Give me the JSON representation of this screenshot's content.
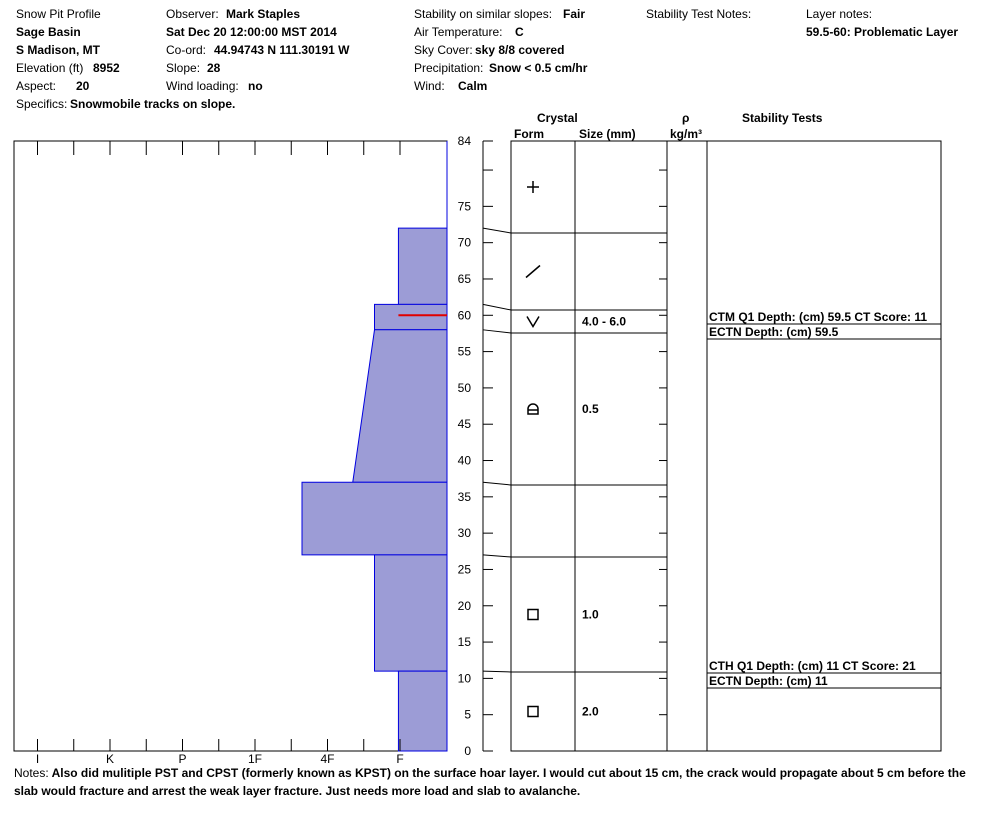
{
  "header": {
    "title": "Snow Pit Profile",
    "location_name": "Sage Basin",
    "region": "S Madison, MT",
    "elevation_label": "Elevation (ft)",
    "elevation_value": "8952",
    "aspect_label": "Aspect:",
    "aspect_value": "20",
    "specifics_label": "Specifics:",
    "specifics_value": "Snowmobile tracks on slope.",
    "observer_label": "Observer:",
    "observer_value": "Mark Staples",
    "datetime": "Sat Dec 20 12:00:00 MST 2014",
    "coord_label": "Co-ord:",
    "coord_value": "44.94743 N 111.30191 W",
    "slope_label": "Slope:",
    "slope_value": "28",
    "wind_loading_label": "Wind loading:",
    "wind_loading_value": "no",
    "stability_label": "Stability on similar slopes:",
    "stability_value": "Fair",
    "air_temp_label": "Air Temperature:",
    "air_temp_value": "C",
    "sky_label": "Sky Cover:",
    "sky_value": "sky 8/8 covered",
    "precip_label": "Precipitation:",
    "precip_value": "Snow < 0.5 cm/hr",
    "wind_label": "Wind:",
    "wind_value": "Calm",
    "stability_test_notes_label": "Stability Test Notes:",
    "layer_notes_label": "Layer notes:",
    "layer_notes_value": "59.5-60: Problematic Layer"
  },
  "columns": {
    "crystal": "Crystal",
    "form": "Form",
    "size": "Size (mm)",
    "rho": "ρ",
    "density_unit": "kg/m³",
    "stability_tests": "Stability Tests"
  },
  "notes": {
    "label": "Notes:",
    "text": "Also did mulitiple PST and CPST (formerly known as KPST) on the surface hoar layer. I would cut about 15 cm, the crack would propagate about 5 cm before the slab would fracture and arrest the weak layer fracture. Just needs more load and slab to avalanche."
  },
  "chart_data": {
    "type": "area",
    "title": "",
    "xlabel": "",
    "ylabel": "",
    "ylim": [
      0,
      84
    ],
    "y_ticks": [
      0,
      5,
      10,
      15,
      20,
      25,
      30,
      35,
      40,
      45,
      50,
      55,
      60,
      65,
      70,
      75,
      84
    ],
    "hardness_scale": [
      "F",
      "4F",
      "1F",
      "P",
      "K",
      "I"
    ],
    "hardness_labels": [
      "I",
      "K",
      "P",
      "1F",
      "4F",
      "F"
    ],
    "layers": [
      {
        "top": 84,
        "bottom": 72,
        "hardness_top": 0,
        "hardness_bottom": 0,
        "form": "new-snow",
        "size": ""
      },
      {
        "top": 72,
        "bottom": 61.5,
        "hardness_top": 0.67,
        "hardness_bottom": 0.67,
        "form": "decomposing",
        "size": ""
      },
      {
        "top": 61.5,
        "bottom": 58,
        "hardness_top": 1.0,
        "hardness_bottom": 1.0,
        "form": "surface-hoar",
        "size": "4.0 - 6.0"
      },
      {
        "top": 58,
        "bottom": 37,
        "hardness_top": 1.0,
        "hardness_bottom": 1.3,
        "form": "faceted-rounded",
        "size": "0.5"
      },
      {
        "top": 37,
        "bottom": 27,
        "hardness_top": 2.0,
        "hardness_bottom": 2.0,
        "form": "",
        "size": ""
      },
      {
        "top": 27,
        "bottom": 11,
        "hardness_top": 1.0,
        "hardness_bottom": 1.0,
        "form": "faceted",
        "size": "1.0"
      },
      {
        "top": 11,
        "bottom": 0,
        "hardness_top": 0.67,
        "hardness_bottom": 0.67,
        "form": "faceted",
        "size": "2.0"
      }
    ],
    "problem_layer": {
      "depth": 60
    },
    "stability_tests": [
      {
        "depth": 59.5,
        "lines": [
          "CTM Q1 Depth: (cm) 59.5 CT Score: 11",
          "ECTN  Depth: (cm) 59.5"
        ]
      },
      {
        "depth": 11,
        "lines": [
          "CTH Q1 Depth: (cm) 11 CT Score: 21",
          "ECTN  Depth: (cm) 11"
        ]
      }
    ],
    "colors": {
      "fill": "#9c9cd6",
      "edge": "#0000e0",
      "problem": "#e00000"
    }
  }
}
